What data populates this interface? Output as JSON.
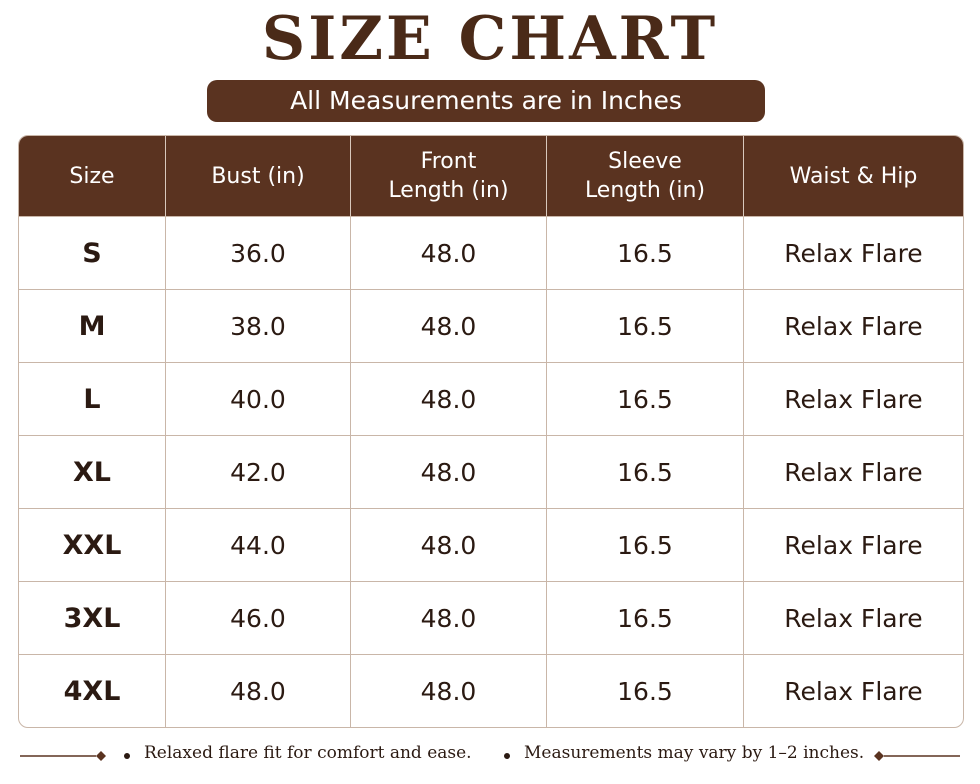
{
  "header": {
    "title": "SIZE CHART",
    "subtitle": "All Measurements are in Inches"
  },
  "table": {
    "columns": [
      "Size",
      "Bust (in)",
      "Front Length (in)",
      "Sleeve Length (in)",
      "Waist & Hip"
    ],
    "rows": [
      [
        "S",
        "36.0",
        "48.0",
        "16.5",
        "Relax Flare"
      ],
      [
        "M",
        "38.0",
        "48.0",
        "16.5",
        "Relax Flare"
      ],
      [
        "L",
        "40.0",
        "48.0",
        "16.5",
        "Relax Flare"
      ],
      [
        "XL",
        "42.0",
        "48.0",
        "16.5",
        "Relax Flare"
      ],
      [
        "XXL",
        "44.0",
        "48.0",
        "16.5",
        "Relax Flare"
      ],
      [
        "3XL",
        "46.0",
        "48.0",
        "16.5",
        "Relax Flare"
      ],
      [
        "4XL",
        "48.0",
        "48.0",
        "16.5",
        "Relax Flare"
      ]
    ]
  },
  "footer": {
    "notes": [
      "Relaxed flare fit for comfort and ease.",
      "Measurements may vary by 1–2 inches."
    ]
  }
}
